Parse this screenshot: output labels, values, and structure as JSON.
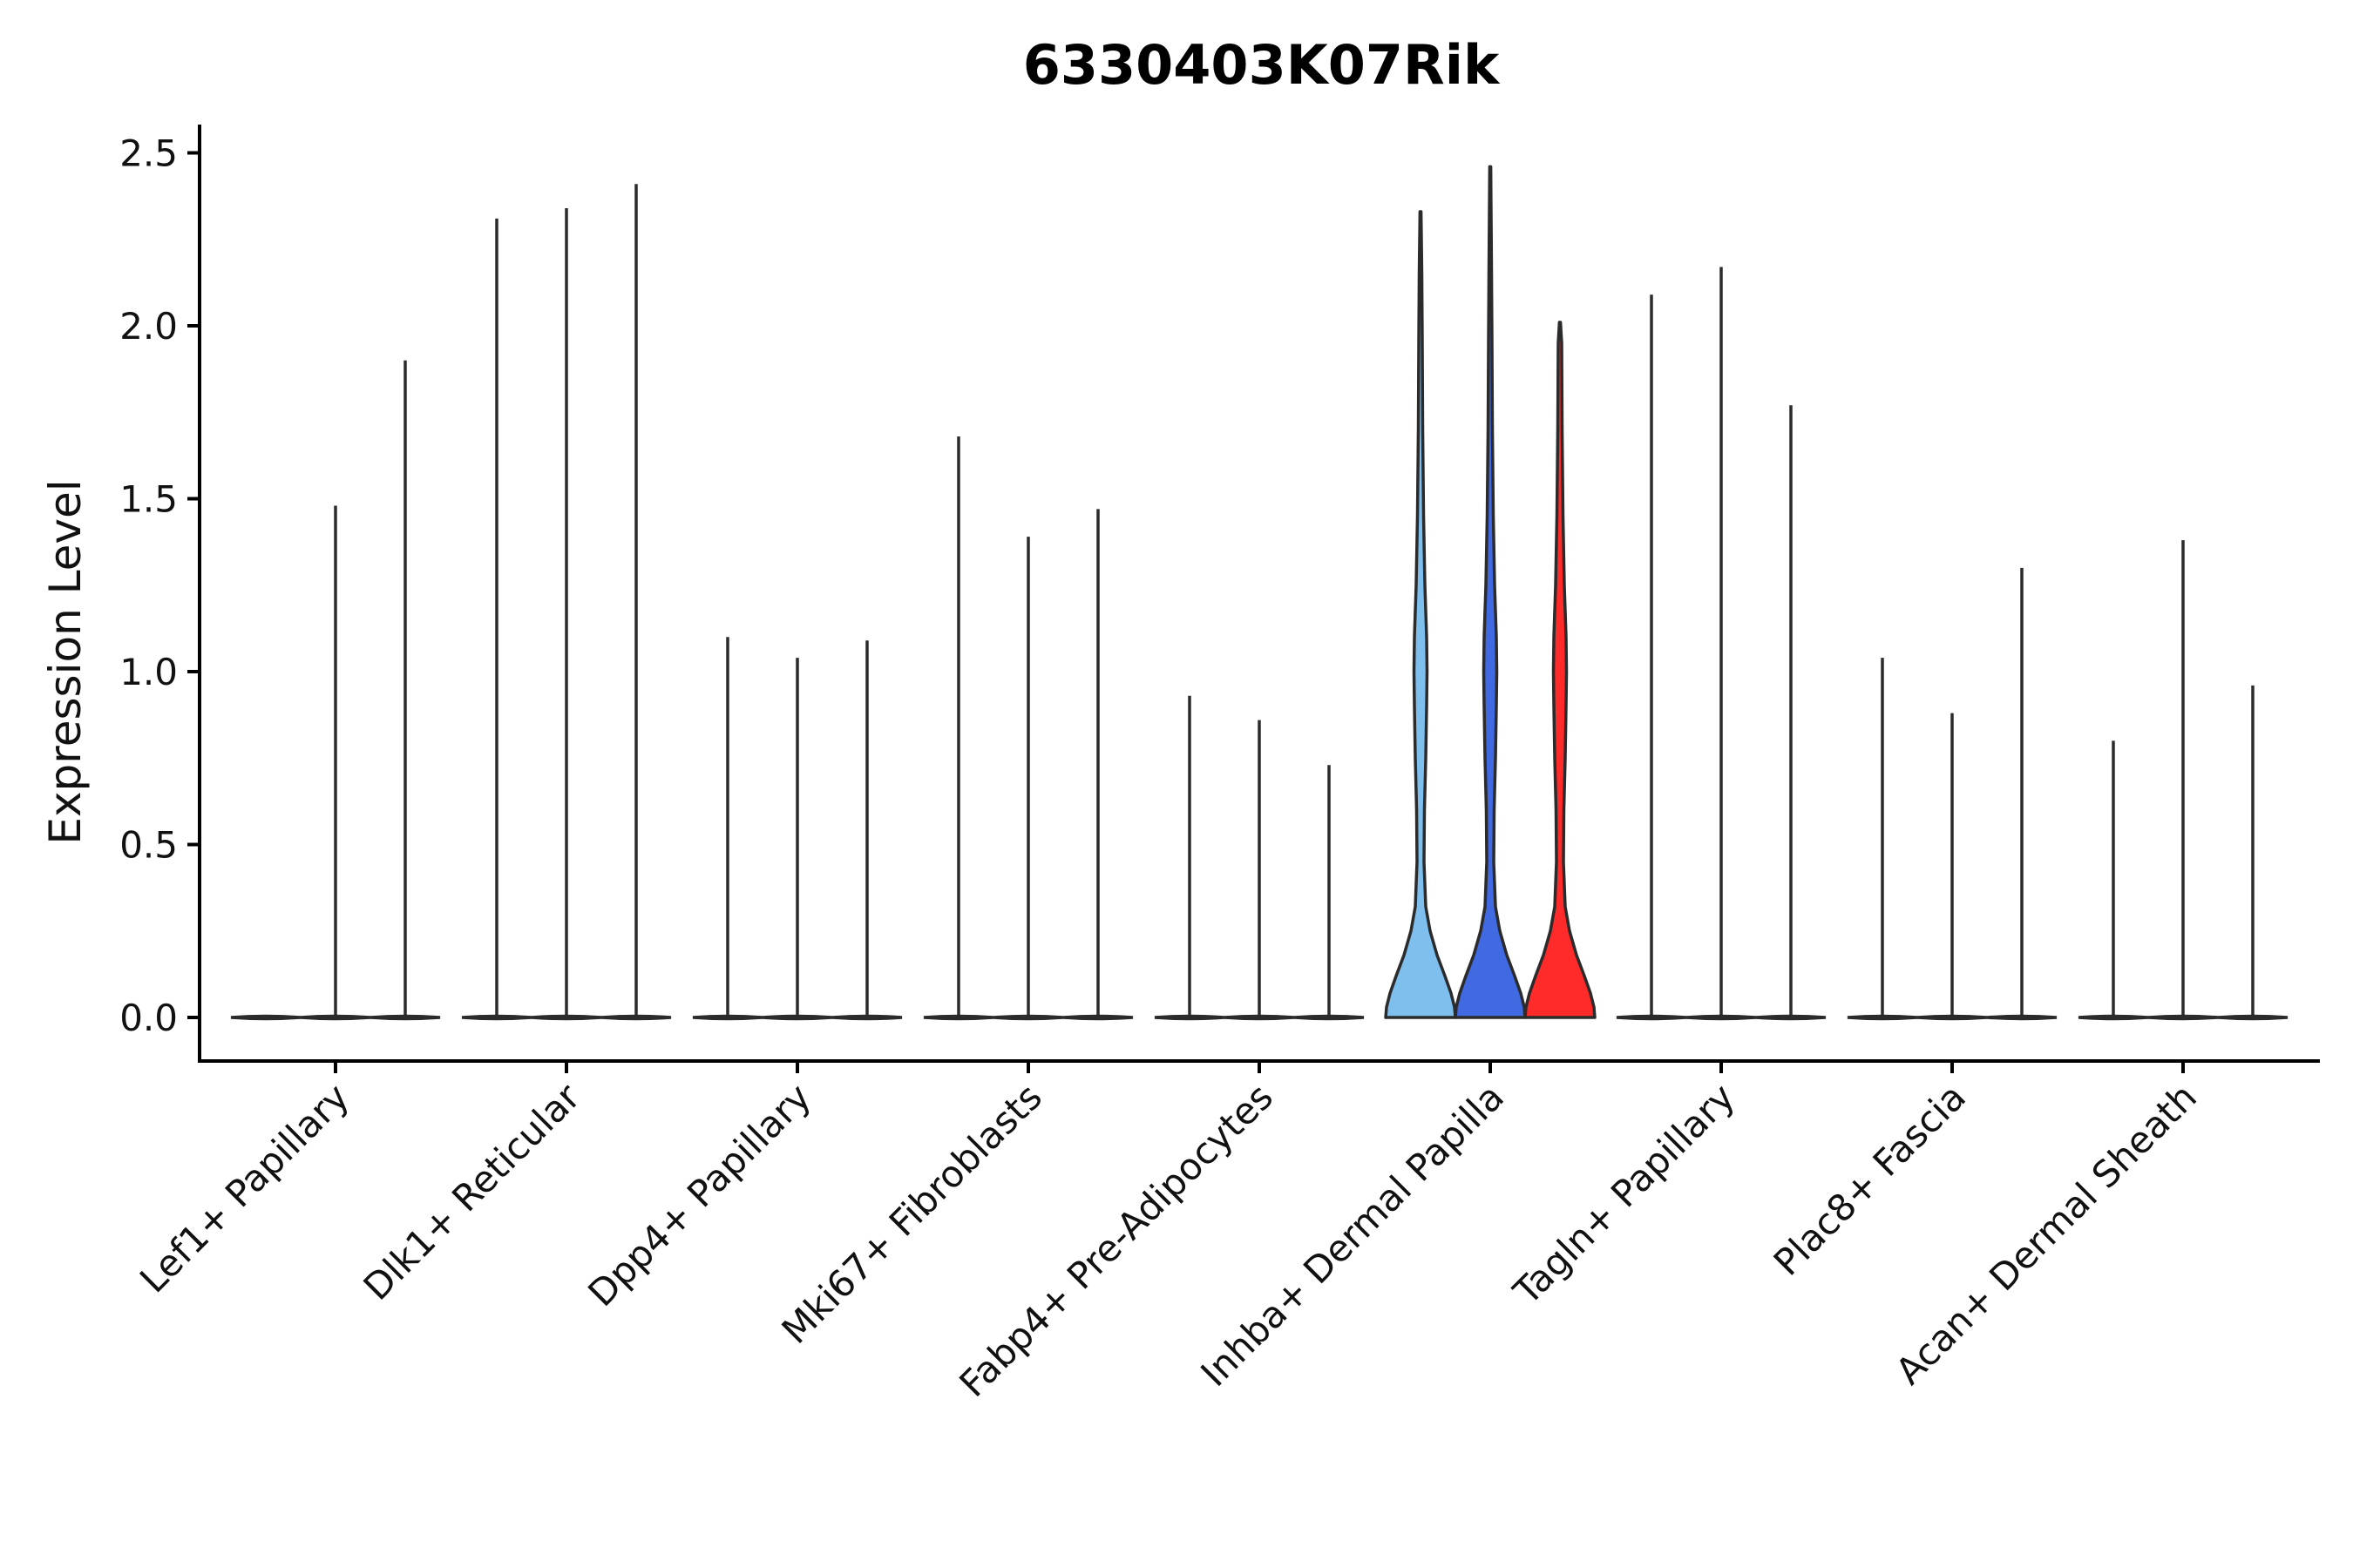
{
  "chart_data": {
    "type": "violin",
    "title": "6330403K07Rik",
    "ylabel": "Expression Level",
    "xlabel": "",
    "ylim": [
      -0.12,
      2.6
    ],
    "yticks": [
      "0.0",
      "0.5",
      "1.0",
      "1.5",
      "2.0",
      "2.5"
    ],
    "ytick_values": [
      0.0,
      0.5,
      1.0,
      1.5,
      2.0,
      2.5
    ],
    "grid": false,
    "legend": "none",
    "categories": [
      "Lef1+ Papillary",
      "Dlk1+ Reticular",
      "Dpp4+ Papillary",
      "Mki67+ Fibroblasts",
      "Fabp4+ Pre-Adipocytes",
      "Inhba+ Dermal Papilla",
      "Tagln+ Papillary",
      "Plac8+ Fascia",
      "Acan+ Dermal Sheath"
    ],
    "violins": [
      {
        "category": "Lef1+ Papillary",
        "max": [
          0.0,
          1.48,
          1.9
        ]
      },
      {
        "category": "Dlk1+ Reticular",
        "max": [
          2.31,
          2.34,
          2.41
        ]
      },
      {
        "category": "Dpp4+ Papillary",
        "max": [
          1.1,
          1.04,
          1.09
        ]
      },
      {
        "category": "Mki67+ Fibroblasts",
        "max": [
          1.68,
          1.39,
          1.47
        ]
      },
      {
        "category": "Fabp4+ Pre-Adipocytes",
        "max": [
          0.93,
          0.86,
          0.73
        ]
      },
      {
        "category": "Inhba+ Dermal Papilla",
        "max": [
          2.33,
          2.46,
          2.01
        ],
        "fills": [
          "#7fbfed",
          "#4169e1",
          "#ff2a2a"
        ],
        "highlight": true
      },
      {
        "category": "Tagln+ Papillary",
        "max": [
          2.09,
          2.17,
          1.77
        ]
      },
      {
        "category": "Plac8+ Fascia",
        "max": [
          1.04,
          0.88,
          1.3
        ]
      },
      {
        "category": "Acan+ Dermal Sheath",
        "max": [
          0.8,
          1.38,
          0.96
        ]
      }
    ],
    "colors": {
      "axis": "#000000",
      "violin_outline": "#2b2b2b",
      "group1": "#7fbfed",
      "group2": "#4169e1",
      "group3": "#ff2a2a"
    }
  }
}
